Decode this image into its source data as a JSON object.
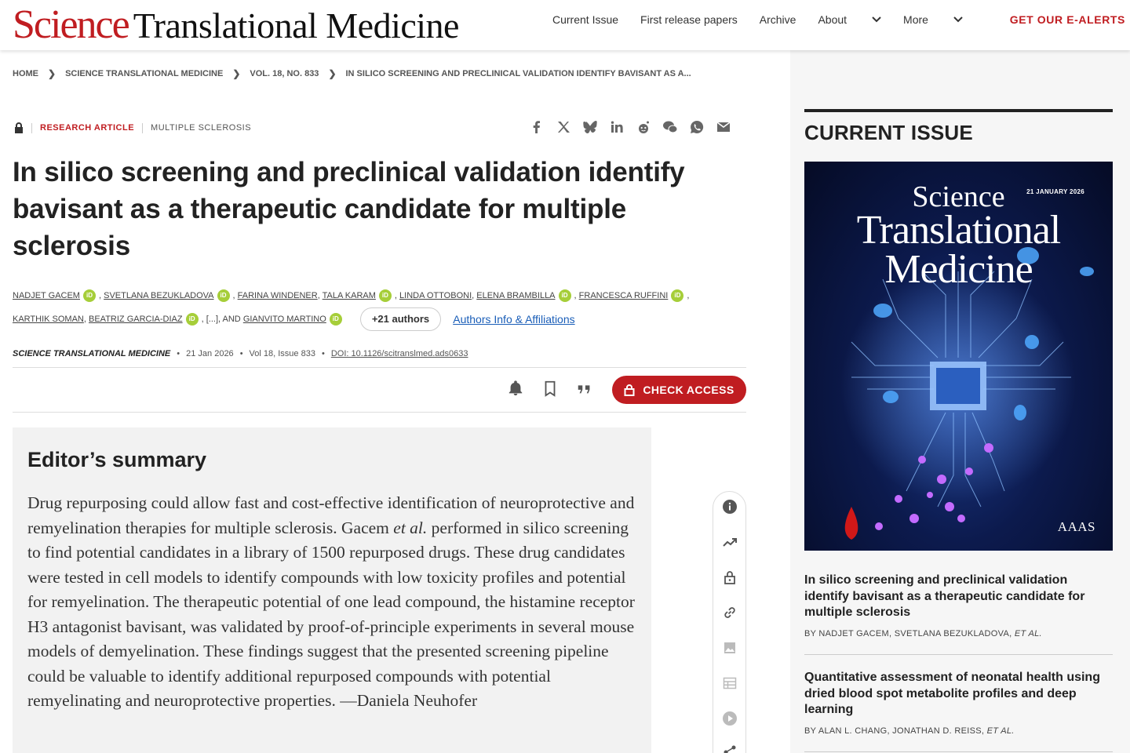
{
  "header": {
    "logo_science": "Science",
    "logo_rest": "Translational Medicine",
    "nav": [
      "Current Issue",
      "First release papers",
      "Archive",
      "About",
      "More"
    ],
    "alerts": "GET OUR E-ALERTS"
  },
  "breadcrumb": [
    "HOME",
    "SCIENCE TRANSLATIONAL MEDICINE",
    "VOL. 18, NO. 833",
    "IN SILICO SCREENING AND PRECLINICAL VALIDATION IDENTIFY BAVISANT AS A..."
  ],
  "article": {
    "type": "RESEARCH ARTICLE",
    "topic": "MULTIPLE SCLEROSIS",
    "title": "In silico screening and preclinical validation identify bavisant as a therapeutic candidate for multiple sclerosis",
    "authors_line1": [
      "NADJET GACEM",
      "SVETLANA BEZUKLADOVA",
      "FARINA WINDENER",
      "TALA KARAM",
      "LINDA OTTOBONI",
      "ELENA BRAMBILLA",
      "FRANCESCA RUFFINI"
    ],
    "authors_line2": [
      "KARTHIK SOMAN",
      "BEATRIZ GARCIA-DIAZ",
      "[...]",
      "AND",
      "GIANVITO MARTINO"
    ],
    "orcid_label": "iD",
    "more_authors": "+21 authors",
    "affiliations_link": "Authors Info & Affiliations",
    "journal": "SCIENCE TRANSLATIONAL MEDICINE",
    "date": "21 Jan 2026",
    "volume": "Vol 18, Issue 833",
    "doi": "DOI: 10.1126/scitranslmed.ads0633",
    "check_access": "CHECK ACCESS"
  },
  "summary": {
    "heading": "Editor’s summary",
    "text_before": "Drug repurposing could allow fast and cost-effective identification of neuroprotec­tive and remyelination therapies for multiple sclerosis. Gacem ",
    "text_em": "et al.",
    "text_after": " performed in silico screening to find potential candidates in a library of 1500 repurposed drugs. These drug candidates were tested in cell models to identify compounds with low toxicity profiles and potential for remyelination. The therapeutic potential of one lead compound, the histamine receptor H3 antagonist bavisant, was validated by proof-of-principle experiments in several mouse models of demyelination. These findings suggest that the presented screening pipeline could be valuable to iden­tify additional repurposed compounds with potential remyelinating and neuropro­tective properties. —Daniela Neuhofer"
  },
  "rail": {
    "section_title": "CURRENT ISSUE",
    "cover": {
      "title_1": "Science",
      "title_2": "Translational",
      "title_3": "Medicine",
      "date": "21 JANUARY 2026",
      "publisher": "AAAS"
    },
    "items": [
      {
        "title": "In silico screening and preclinical validation identify bavisant as a therapeutic candidate for multiple sclerosis",
        "byline_prefix": "BY NADJET GACEM,  SVETLANA BEZUKLADOVA,",
        "byline_etal": "ET AL."
      },
      {
        "title": "Quantitative assessment of neonatal health using dried blood spot metabolite profiles and deep learning",
        "byline_prefix": "BY ALAN L. CHANG,  JONATHAN D. REISS,",
        "byline_etal": "ET AL."
      }
    ]
  },
  "colors": {
    "brand_red": "#c01d21",
    "link_blue": "#1a5eb8",
    "orcid_green": "#a6ce39"
  }
}
